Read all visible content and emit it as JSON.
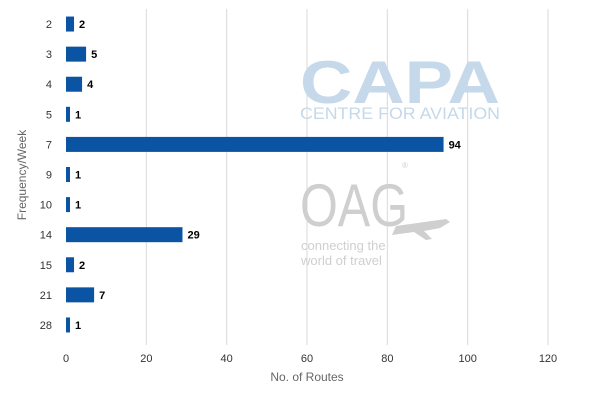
{
  "chart_data": {
    "type": "bar",
    "orientation": "horizontal",
    "categories": [
      "2",
      "3",
      "4",
      "5",
      "7",
      "9",
      "10",
      "14",
      "15",
      "21",
      "28"
    ],
    "values": [
      2,
      5,
      4,
      1,
      94,
      1,
      1,
      29,
      2,
      7,
      1
    ],
    "xlabel": "No. of Routes",
    "ylabel": "Frequency/Week",
    "xlim": [
      0,
      120
    ],
    "xticks": [
      0,
      20,
      40,
      60,
      80,
      100,
      120
    ],
    "grid": "vertical",
    "legend": "none",
    "bar_color": "#0b54a3",
    "data_labels": true
  },
  "watermarks": {
    "capa": {
      "title": "CAPA",
      "subtitle": "CENTRE FOR AVIATION"
    },
    "oag": {
      "title": "OAG",
      "subtitle_line1": "connecting the",
      "subtitle_line2": "world of travel"
    }
  }
}
